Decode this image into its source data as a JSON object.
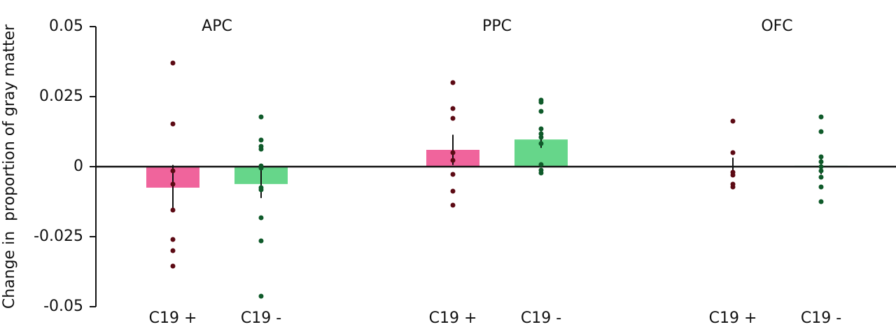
{
  "chart_data": {
    "type": "bar",
    "ylabel": "Change in  proportion of gray matter",
    "categories": [
      "APC",
      "PPC",
      "OFC"
    ],
    "ylim": [
      -0.05,
      0.05
    ],
    "yticks": [
      0.05,
      0.025,
      0,
      -0.025,
      -0.05
    ],
    "series": [
      {
        "name": "C19 +",
        "color": "#f0649c",
        "point_color": "#5c0a14",
        "values": [
          -0.0075,
          0.006,
          0.0002
        ],
        "errors": [
          0.0081,
          0.0054,
          0.003
        ],
        "points": [
          [
            0.037,
            0.01525,
            -0.0015,
            -0.00625,
            -0.0155,
            -0.026,
            -0.03,
            -0.0355
          ],
          [
            0.03,
            0.02075,
            0.01725,
            0.005,
            0.00225,
            -0.00275,
            -0.00875,
            -0.01375
          ],
          [
            0.01625,
            0.005,
            -0.002,
            -0.003,
            -0.00625,
            -0.00725
          ]
        ]
      },
      {
        "name": "C19 -",
        "color": "#66d68a",
        "point_color": "#0f5a2a",
        "values": [
          -0.0062,
          0.0097,
          0.0003
        ],
        "errors": [
          0.005,
          0.003,
          0.003
        ],
        "points": [
          [
            0.01775,
            0.0095,
            0.00725,
            0.00625,
            0.00025,
            -0.0005,
            -0.0075,
            -0.00825,
            -0.01825,
            -0.0265,
            -0.04625
          ],
          [
            0.02375,
            0.023,
            0.01975,
            0.0135,
            0.01175,
            0.0105,
            0.00825,
            0.00075,
            -0.00125,
            -0.00225
          ],
          [
            0.01775,
            0.0125,
            0.0035,
            0.00175,
            0,
            -0.0015,
            -0.00375,
            -0.00725,
            -0.0125
          ]
        ]
      }
    ]
  }
}
